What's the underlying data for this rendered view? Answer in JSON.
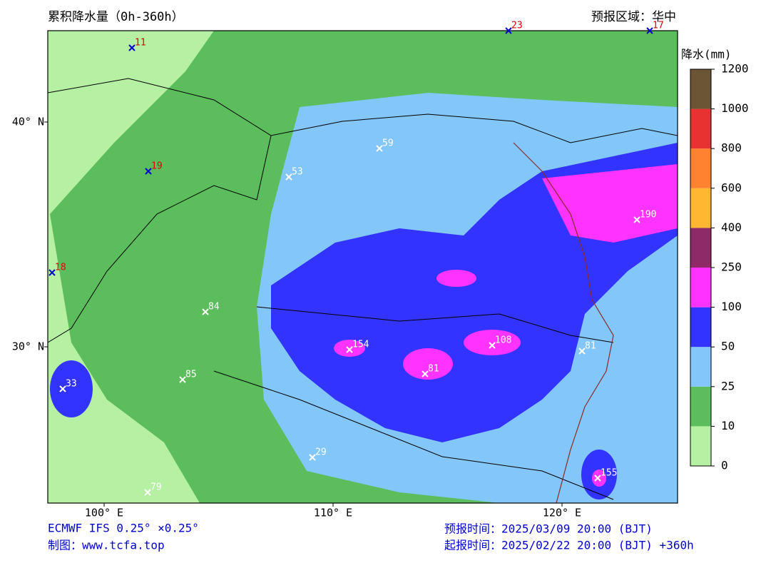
{
  "header": {
    "title": "累积降水量（0h-360h）",
    "region": "预报区域：华中"
  },
  "map": {
    "lat_labels": [
      "40° N",
      "30° N"
    ],
    "lon_labels": [
      "100° E",
      "110° E",
      "120° E"
    ],
    "stations": [
      {
        "label": "11",
        "color": "#e00000"
      },
      {
        "label": "23",
        "color": "#e00000"
      },
      {
        "label": "17",
        "color": "#e00000"
      },
      {
        "label": "19",
        "color": "#e00000"
      },
      {
        "label": "18",
        "color": "#e00000"
      },
      {
        "label": "59",
        "color": "#ffffff"
      },
      {
        "label": "53",
        "color": "#ffffff"
      },
      {
        "label": "84",
        "color": "#ffffff"
      },
      {
        "label": "85",
        "color": "#ffffff"
      },
      {
        "label": "33",
        "color": "#ffffff"
      },
      {
        "label": "154",
        "color": "#ffffff"
      },
      {
        "label": "81",
        "color": "#ffffff"
      },
      {
        "label": "108",
        "color": "#ffffff"
      },
      {
        "label": "81",
        "color": "#ffffff"
      },
      {
        "label": "190",
        "color": "#ffffff"
      },
      {
        "label": "29",
        "color": "#ffffff"
      },
      {
        "label": "79",
        "color": "#ffffff"
      },
      {
        "label": "155",
        "color": "#ffffff"
      }
    ]
  },
  "colorbar": {
    "label": "降水(mm)",
    "levels": [
      0,
      10,
      25,
      50,
      100,
      250,
      400,
      600,
      800,
      1000,
      1200
    ],
    "colors": [
      "#b6f0a2",
      "#5cbd5c",
      "#82c6fa",
      "#3333ff",
      "#ff33ff",
      "#8e2a66",
      "#ffb631",
      "#ff8230",
      "#e83232",
      "#6b5534"
    ]
  },
  "footer": {
    "model": "ECMWF IFS 0.25° ×0.25°",
    "credit": "制图：www.tcfa.top",
    "valid_time": "预报时间：2025/03/09 20:00 (BJT)",
    "init_time": "起报时间：2025/02/22 20:00 (BJT) +360h"
  }
}
